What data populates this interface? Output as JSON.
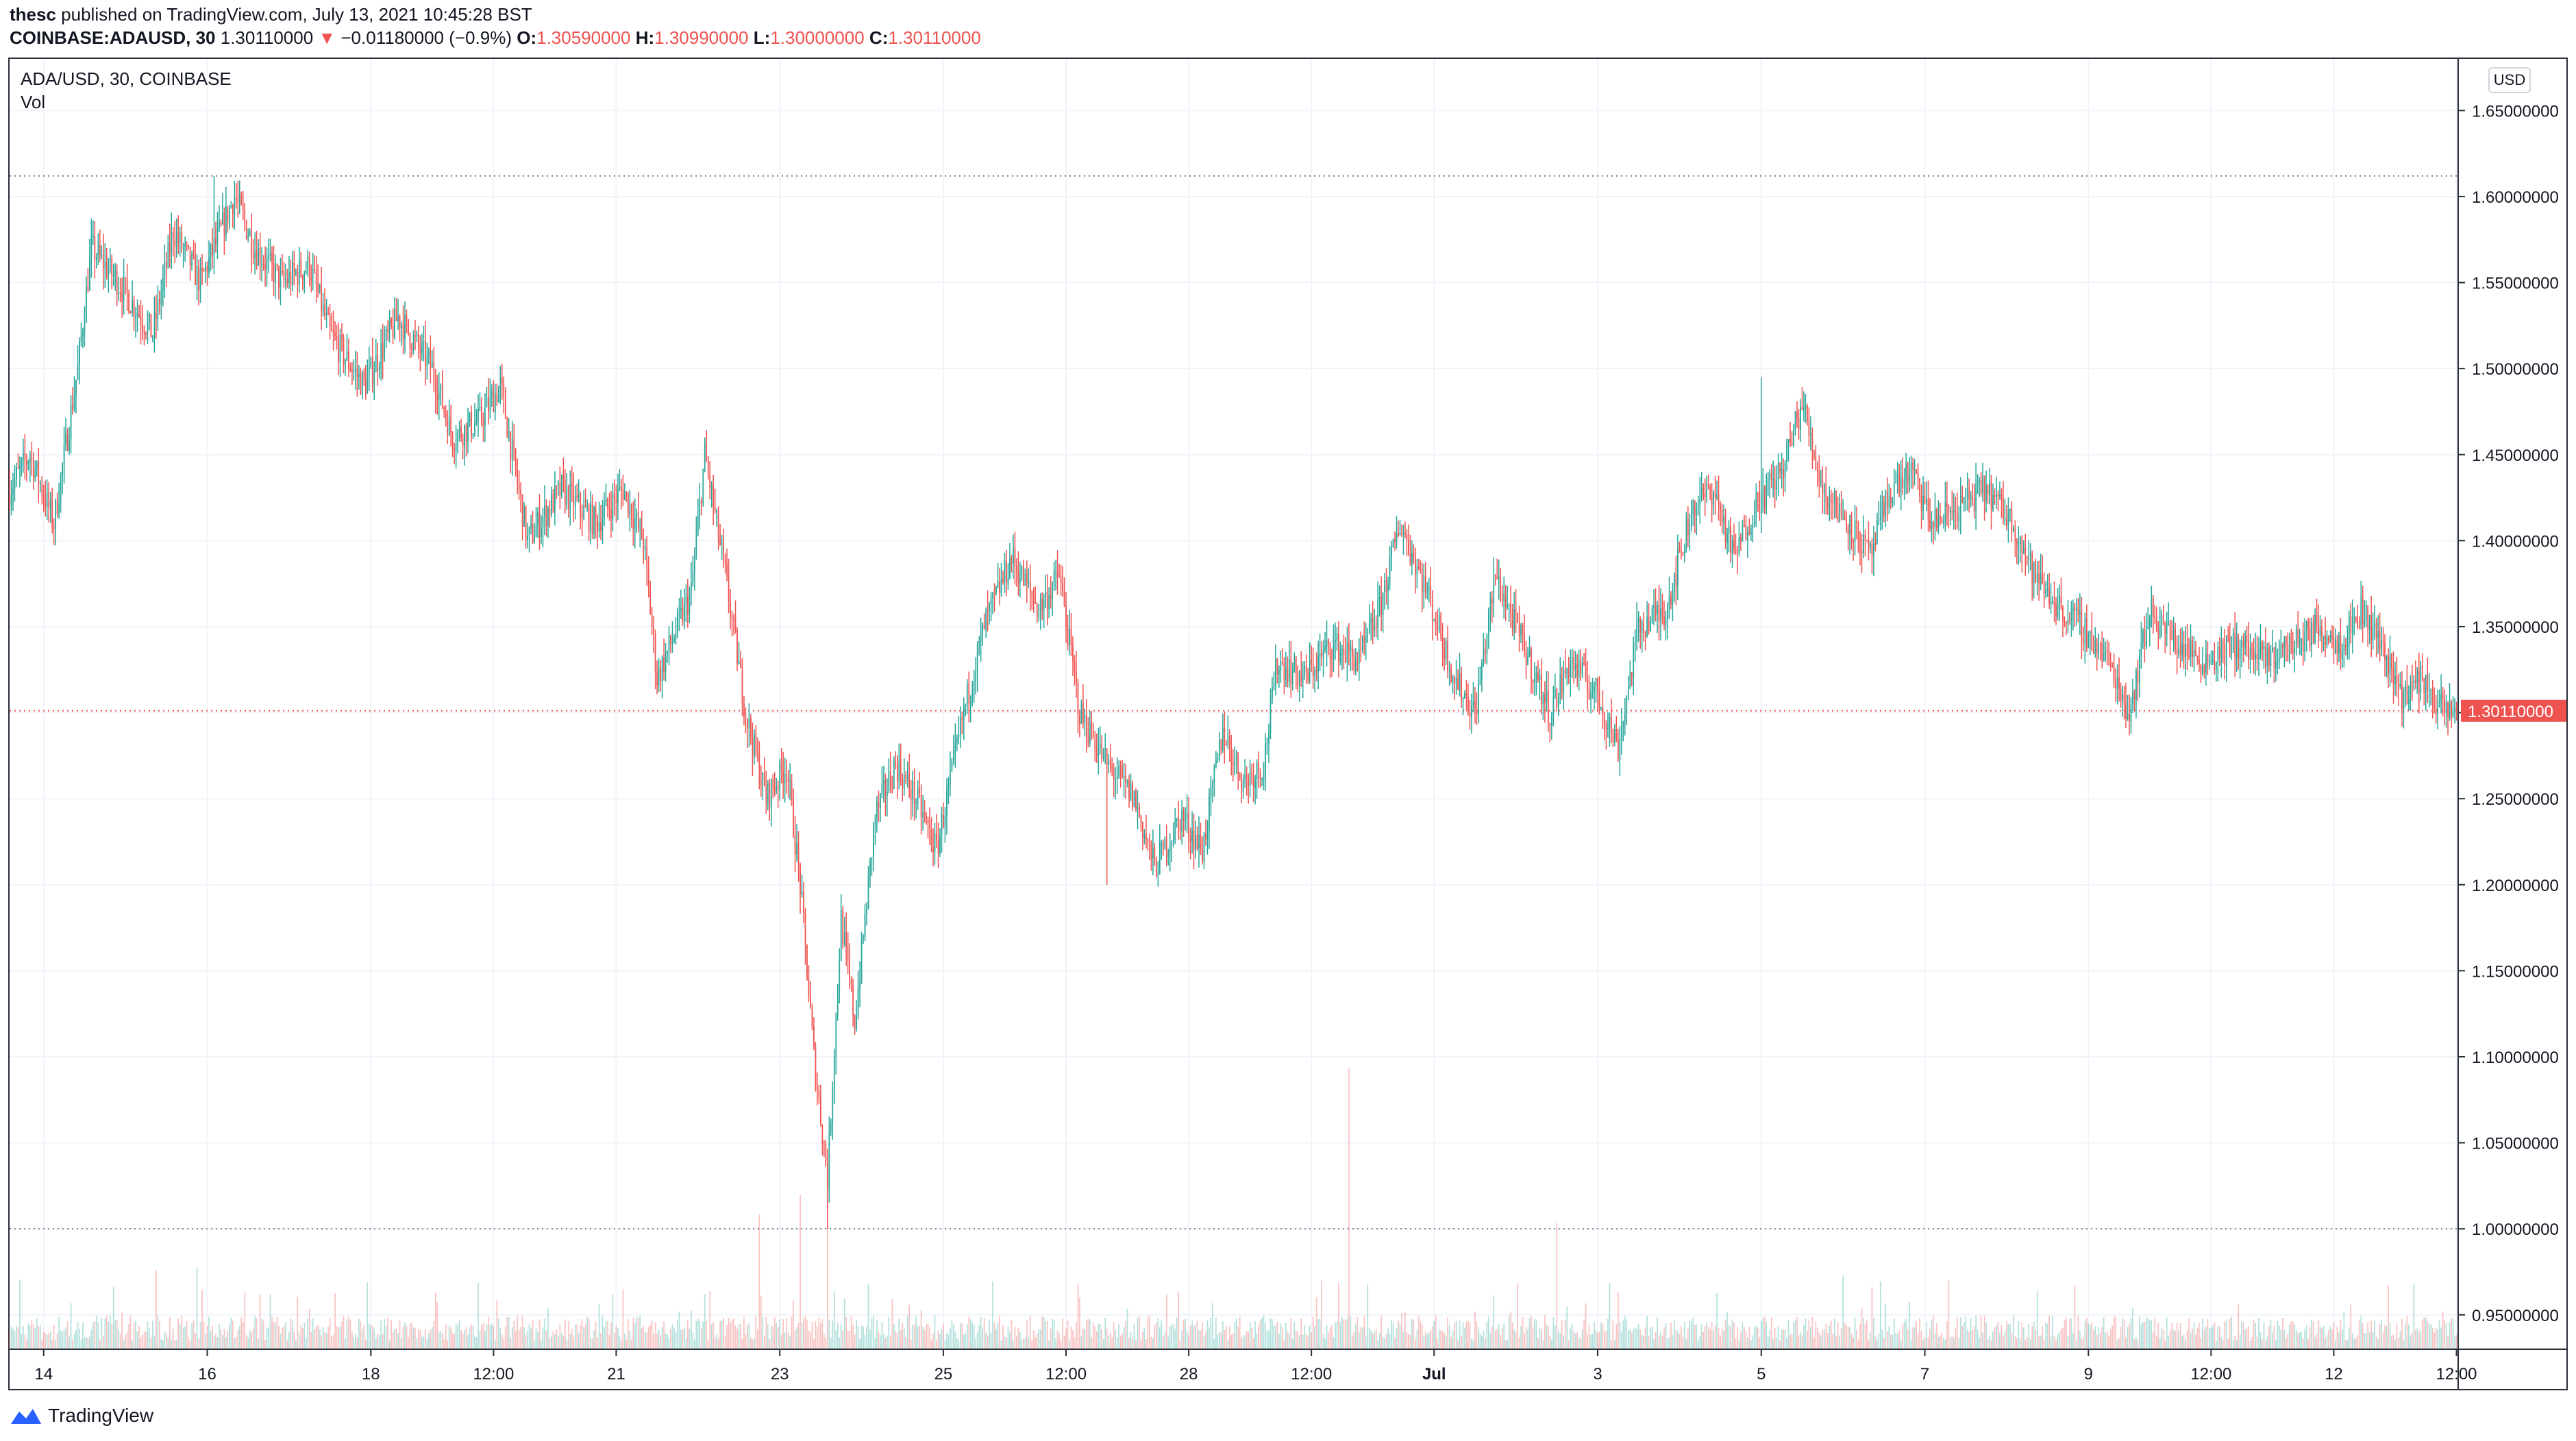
{
  "header": {
    "publisher": "thesc",
    "published_text": "published on TradingView.com, July 13, 2021 10:45:28 BST",
    "symbol": "COINBASE:ADAUSD, 30",
    "last_price": "1.30110000",
    "change_icon": "triangle-down-icon",
    "change_text": "−0.01180000 (−0.9%)",
    "ohlc": [
      {
        "label": "O:",
        "value": "1.30590000"
      },
      {
        "label": "H:",
        "value": "1.30990000"
      },
      {
        "label": "L:",
        "value": "1.30000000"
      },
      {
        "label": "C:",
        "value": "1.30110000"
      }
    ]
  },
  "legend": {
    "title": "ADA/USD, 30, COINBASE",
    "volume": "Vol"
  },
  "currency_badge": "USD",
  "footer_brand": "TradingView",
  "colors": {
    "up": "#26a69a",
    "down": "#ef5350",
    "grid": "#f0f3fa",
    "text": "#131722",
    "price_line": "#ef5350"
  },
  "chart_data": {
    "type": "candlestick",
    "interval_minutes": 30,
    "y_range": [
      0.93,
      1.68
    ],
    "y_ticks": [
      "1.65000000",
      "1.60000000",
      "1.55000000",
      "1.50000000",
      "1.45000000",
      "1.40000000",
      "1.35000000",
      "1.30000000",
      "1.25000000",
      "1.20000000",
      "1.15000000",
      "1.10000000",
      "1.05000000",
      "1.00000000",
      "0.95000000"
    ],
    "x_range": [
      "2021-06-13T14:00",
      "2021-07-13T12:30"
    ],
    "x_ticks": [
      {
        "label": "14",
        "t": "2021-06-14T00:00",
        "bold": false
      },
      {
        "label": "16",
        "t": "2021-06-16T00:00",
        "bold": false
      },
      {
        "label": "18",
        "t": "2021-06-18T00:00",
        "bold": false
      },
      {
        "label": "12:00",
        "t": "2021-06-19T12:00",
        "bold": false
      },
      {
        "label": "21",
        "t": "2021-06-21T00:00",
        "bold": false
      },
      {
        "label": "23",
        "t": "2021-06-23T00:00",
        "bold": false
      },
      {
        "label": "25",
        "t": "2021-06-25T00:00",
        "bold": false
      },
      {
        "label": "12:00",
        "t": "2021-06-26T12:00",
        "bold": false
      },
      {
        "label": "28",
        "t": "2021-06-28T00:00",
        "bold": false
      },
      {
        "label": "12:00",
        "t": "2021-06-29T12:00",
        "bold": false
      },
      {
        "label": "Jul",
        "t": "2021-07-01T00:00",
        "bold": true
      },
      {
        "label": "3",
        "t": "2021-07-03T00:00",
        "bold": false
      },
      {
        "label": "5",
        "t": "2021-07-05T00:00",
        "bold": false
      },
      {
        "label": "7",
        "t": "2021-07-07T00:00",
        "bold": false
      },
      {
        "label": "9",
        "t": "2021-07-09T00:00",
        "bold": false
      },
      {
        "label": "12:00",
        "t": "2021-07-10T12:00",
        "bold": false
      },
      {
        "label": "12",
        "t": "2021-07-12T00:00",
        "bold": false
      },
      {
        "label": "12:00",
        "t": "2021-07-13T12:00",
        "bold": false
      }
    ],
    "last_price_value": 1.3011,
    "last_price_label": "1.30110000",
    "high_line_value": 1.612,
    "low_line_value": 1.0,
    "close_path": [
      [
        "2021-06-13T14:00",
        1.43
      ],
      [
        "2021-06-13T20:00",
        1.45
      ],
      [
        "2021-06-14T03:00",
        1.41
      ],
      [
        "2021-06-14T10:00",
        1.5
      ],
      [
        "2021-06-14T14:00",
        1.57
      ],
      [
        "2021-06-14T22:00",
        1.55
      ],
      [
        "2021-06-15T08:00",
        1.52
      ],
      [
        "2021-06-15T14:00",
        1.58
      ],
      [
        "2021-06-15T22:00",
        1.55
      ],
      [
        "2021-06-16T08:00",
        1.6
      ],
      [
        "2021-06-16T14:00",
        1.57
      ],
      [
        "2021-06-16T22:00",
        1.55
      ],
      [
        "2021-06-17T06:00",
        1.56
      ],
      [
        "2021-06-17T12:00",
        1.52
      ],
      [
        "2021-06-17T22:00",
        1.49
      ],
      [
        "2021-06-18T08:00",
        1.53
      ],
      [
        "2021-06-18T18:00",
        1.5
      ],
      [
        "2021-06-19T00:00",
        1.46
      ],
      [
        "2021-06-19T08:00",
        1.47
      ],
      [
        "2021-06-19T14:00",
        1.49
      ],
      [
        "2021-06-19T22:00",
        1.4
      ],
      [
        "2021-06-20T08:00",
        1.43
      ],
      [
        "2021-06-20T18:00",
        1.41
      ],
      [
        "2021-06-21T02:00",
        1.43
      ],
      [
        "2021-06-21T08:00",
        1.4
      ],
      [
        "2021-06-21T12:00",
        1.32
      ],
      [
        "2021-06-21T22:00",
        1.37
      ],
      [
        "2021-06-22T02:00",
        1.45
      ],
      [
        "2021-06-22T08:00",
        1.38
      ],
      [
        "2021-06-22T14:00",
        1.3
      ],
      [
        "2021-06-22T20:00",
        1.25
      ],
      [
        "2021-06-23T02:00",
        1.27
      ],
      [
        "2021-06-23T06:00",
        1.2
      ],
      [
        "2021-06-23T10:00",
        1.1
      ],
      [
        "2021-06-23T14:00",
        1.03
      ],
      [
        "2021-06-23T18:00",
        1.18
      ],
      [
        "2021-06-23T22:00",
        1.12
      ],
      [
        "2021-06-24T04:00",
        1.24
      ],
      [
        "2021-06-24T10:00",
        1.27
      ],
      [
        "2021-06-24T16:00",
        1.25
      ],
      [
        "2021-06-24T22:00",
        1.22
      ],
      [
        "2021-06-25T06:00",
        1.3
      ],
      [
        "2021-06-25T12:00",
        1.35
      ],
      [
        "2021-06-25T20:00",
        1.39
      ],
      [
        "2021-06-26T04:00",
        1.36
      ],
      [
        "2021-06-26T10:00",
        1.38
      ],
      [
        "2021-06-26T16:00",
        1.3
      ],
      [
        "2021-06-27T00:00",
        1.27
      ],
      [
        "2021-06-27T08:00",
        1.25
      ],
      [
        "2021-06-27T14:00",
        1.21
      ],
      [
        "2021-06-27T22:00",
        1.24
      ],
      [
        "2021-06-28T04:00",
        1.22
      ],
      [
        "2021-06-28T10:00",
        1.29
      ],
      [
        "2021-06-28T16:00",
        1.26
      ],
      [
        "2021-06-28T22:00",
        1.27
      ],
      [
        "2021-06-29T02:00",
        1.33
      ],
      [
        "2021-06-29T10:00",
        1.32
      ],
      [
        "2021-06-29T18:00",
        1.34
      ],
      [
        "2021-06-30T02:00",
        1.33
      ],
      [
        "2021-06-30T08:00",
        1.36
      ],
      [
        "2021-06-30T14:00",
        1.41
      ],
      [
        "2021-06-30T22:00",
        1.37
      ],
      [
        "2021-07-01T06:00",
        1.32
      ],
      [
        "2021-07-01T12:00",
        1.3
      ],
      [
        "2021-07-01T18:00",
        1.38
      ],
      [
        "2021-07-02T02:00",
        1.34
      ],
      [
        "2021-07-02T10:00",
        1.3
      ],
      [
        "2021-07-02T16:00",
        1.33
      ],
      [
        "2021-07-03T00:00",
        1.31
      ],
      [
        "2021-07-03T06:00",
        1.28
      ],
      [
        "2021-07-03T12:00",
        1.35
      ],
      [
        "2021-07-03T20:00",
        1.36
      ],
      [
        "2021-07-04T04:00",
        1.42
      ],
      [
        "2021-07-04T10:00",
        1.43
      ],
      [
        "2021-07-04T16:00",
        1.39
      ],
      [
        "2021-07-04T22:00",
        1.42
      ],
      [
        "2021-07-05T06:00",
        1.44
      ],
      [
        "2021-07-05T12:00",
        1.48
      ],
      [
        "2021-07-05T18:00",
        1.43
      ],
      [
        "2021-07-06T02:00",
        1.41
      ],
      [
        "2021-07-06T08:00",
        1.39
      ],
      [
        "2021-07-06T14:00",
        1.43
      ],
      [
        "2021-07-06T20:00",
        1.44
      ],
      [
        "2021-07-07T02:00",
        1.41
      ],
      [
        "2021-07-07T10:00",
        1.42
      ],
      [
        "2021-07-07T18:00",
        1.43
      ],
      [
        "2021-07-08T02:00",
        1.41
      ],
      [
        "2021-07-08T08:00",
        1.38
      ],
      [
        "2021-07-08T16:00",
        1.36
      ],
      [
        "2021-07-08T22:00",
        1.35
      ],
      [
        "2021-07-09T06:00",
        1.33
      ],
      [
        "2021-07-09T12:00",
        1.3
      ],
      [
        "2021-07-09T18:00",
        1.36
      ],
      [
        "2021-07-10T02:00",
        1.34
      ],
      [
        "2021-07-10T10:00",
        1.33
      ],
      [
        "2021-07-10T20:00",
        1.34
      ],
      [
        "2021-07-11T04:00",
        1.33
      ],
      [
        "2021-07-11T12:00",
        1.34
      ],
      [
        "2021-07-11T20:00",
        1.35
      ],
      [
        "2021-07-12T02:00",
        1.34
      ],
      [
        "2021-07-12T08:00",
        1.36
      ],
      [
        "2021-07-12T14:00",
        1.34
      ],
      [
        "2021-07-12T20:00",
        1.31
      ],
      [
        "2021-07-13T02:00",
        1.32
      ],
      [
        "2021-07-13T08:00",
        1.3
      ],
      [
        "2021-07-13T12:30",
        1.3011
      ]
    ],
    "extremes": [
      {
        "t": "2021-06-16T02:00",
        "high": 1.612
      },
      {
        "t": "2021-06-23T14:00",
        "low": 1.0
      },
      {
        "t": "2021-07-05T00:00",
        "high": 1.495
      },
      {
        "t": "2021-06-22T02:00",
        "high": 1.46
      },
      {
        "t": "2021-06-27T00:00",
        "low": 1.2
      }
    ],
    "volume_range": [
      0,
      1
    ],
    "volume_spikes": [
      {
        "t": "2021-06-23T06:00",
        "v": 0.55
      },
      {
        "t": "2021-06-22T18:00",
        "v": 0.48
      },
      {
        "t": "2021-06-23T14:00",
        "v": 0.6
      },
      {
        "t": "2021-06-29T23:00",
        "v": 1.0
      },
      {
        "t": "2021-07-02T12:00",
        "v": 0.45
      }
    ]
  }
}
